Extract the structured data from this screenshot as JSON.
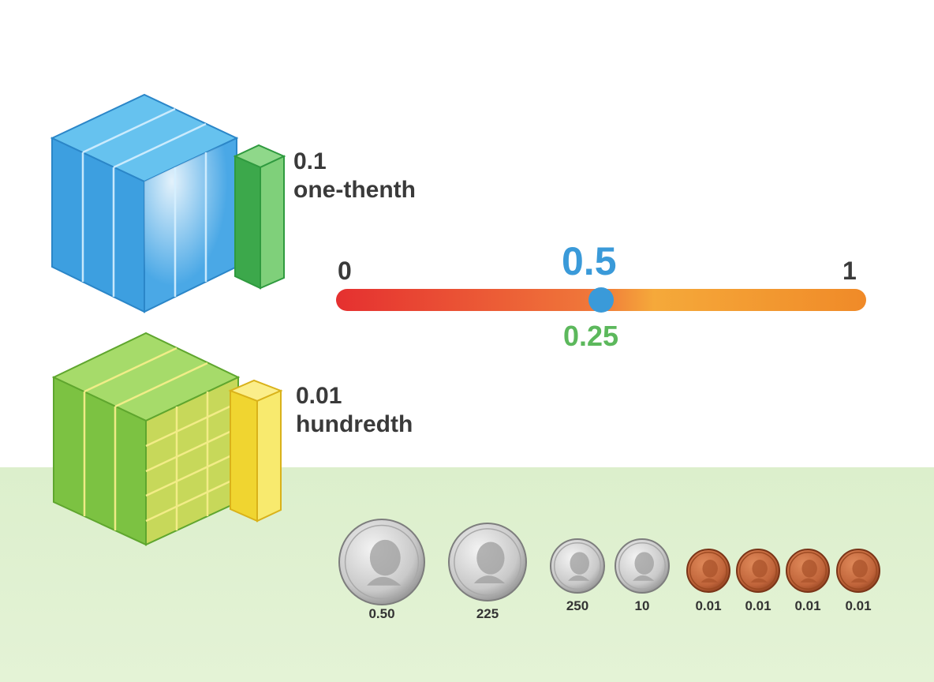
{
  "blocks": [
    {
      "value": "0.1",
      "name": "one-thenth",
      "color": "#3a9ee0",
      "bar_color": "#4cb85a"
    },
    {
      "value": "0.01",
      "name": "hundredth",
      "color": "#7cc242",
      "bar_color": "#f2df40"
    }
  ],
  "number_line": {
    "start": "0",
    "end": "1",
    "marker_top": "0.5",
    "marker_bottom": "0.25",
    "marker_position": 0.5,
    "colors": {
      "start": "#e53030",
      "end": "#f08a28",
      "top_label": "#3a9ad9",
      "bottom_label": "#5cb85c",
      "marker": "#3a9ad9"
    }
  },
  "coins": [
    {
      "type": "quarter",
      "label": "0.50"
    },
    {
      "type": "quarter",
      "label": "225"
    },
    {
      "type": "dime",
      "label": "250"
    },
    {
      "type": "dime",
      "label": "10"
    },
    {
      "type": "penny",
      "label": "0.01"
    },
    {
      "type": "penny",
      "label": "0.01"
    },
    {
      "type": "penny",
      "label": "0.01"
    },
    {
      "type": "penny",
      "label": "0.01"
    }
  ]
}
